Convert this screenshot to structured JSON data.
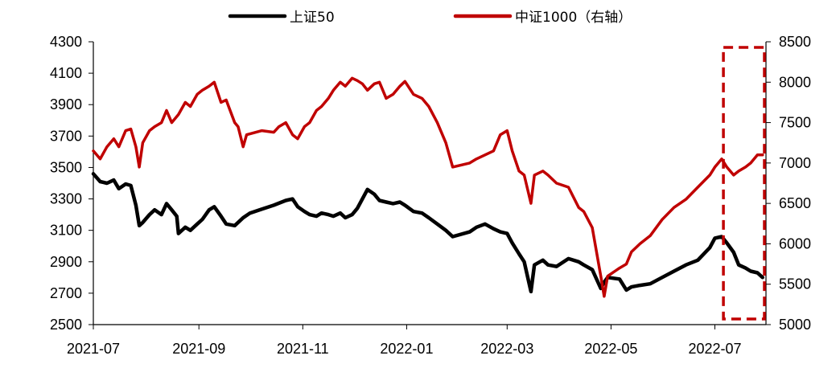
{
  "chart_data": {
    "type": "line",
    "title": "",
    "xlabel": "",
    "ylabel": "",
    "x_ticks": [
      "2021-07",
      "2021-09",
      "2021-11",
      "2022-01",
      "2022-03",
      "2022-05",
      "2022-07"
    ],
    "xlim": [
      "2021-07-01",
      "2022-07-31"
    ],
    "ylim_left": [
      2500,
      4300
    ],
    "yticks_left": [
      2500,
      2700,
      2900,
      3100,
      3300,
      3500,
      3700,
      3900,
      4100,
      4300
    ],
    "ylim_right": [
      5000,
      8500
    ],
    "yticks_right": [
      5000,
      5500,
      6000,
      6500,
      7000,
      7500,
      8000,
      8500
    ],
    "grid": false,
    "legend_position": "top-center",
    "highlight_box": {
      "x_range": [
        "2022-07-06",
        "2022-07-31"
      ],
      "style": "dashed",
      "color": "#c00000"
    },
    "series": [
      {
        "name": "上证50",
        "axis": "left",
        "color": "#000000",
        "points": [
          [
            "2021-07-01",
            3460
          ],
          [
            "2021-07-05",
            3410
          ],
          [
            "2021-07-09",
            3400
          ],
          [
            "2021-07-13",
            3420
          ],
          [
            "2021-07-16",
            3365
          ],
          [
            "2021-07-20",
            3395
          ],
          [
            "2021-07-23",
            3385
          ],
          [
            "2021-07-26",
            3260
          ],
          [
            "2021-07-28",
            3130
          ],
          [
            "2021-07-30",
            3150
          ],
          [
            "2021-08-03",
            3200
          ],
          [
            "2021-08-06",
            3230
          ],
          [
            "2021-08-10",
            3200
          ],
          [
            "2021-08-13",
            3270
          ],
          [
            "2021-08-16",
            3230
          ],
          [
            "2021-08-19",
            3190
          ],
          [
            "2021-08-20",
            3080
          ],
          [
            "2021-08-24",
            3120
          ],
          [
            "2021-08-27",
            3100
          ],
          [
            "2021-08-31",
            3140
          ],
          [
            "2021-09-03",
            3170
          ],
          [
            "2021-09-07",
            3230
          ],
          [
            "2021-09-10",
            3250
          ],
          [
            "2021-09-14",
            3190
          ],
          [
            "2021-09-17",
            3140
          ],
          [
            "2021-09-22",
            3130
          ],
          [
            "2021-09-27",
            3180
          ],
          [
            "2021-10-01",
            3210
          ],
          [
            "2021-10-08",
            3235
          ],
          [
            "2021-10-15",
            3260
          ],
          [
            "2021-10-22",
            3290
          ],
          [
            "2021-10-26",
            3300
          ],
          [
            "2021-10-29",
            3250
          ],
          [
            "2021-11-02",
            3220
          ],
          [
            "2021-11-05",
            3200
          ],
          [
            "2021-11-09",
            3190
          ],
          [
            "2021-11-12",
            3210
          ],
          [
            "2021-11-16",
            3200
          ],
          [
            "2021-11-19",
            3190
          ],
          [
            "2021-11-23",
            3210
          ],
          [
            "2021-11-26",
            3180
          ],
          [
            "2021-11-30",
            3200
          ],
          [
            "2021-12-03",
            3240
          ],
          [
            "2021-12-06",
            3300
          ],
          [
            "2021-12-09",
            3360
          ],
          [
            "2021-12-13",
            3330
          ],
          [
            "2021-12-16",
            3290
          ],
          [
            "2021-12-20",
            3280
          ],
          [
            "2021-12-24",
            3270
          ],
          [
            "2021-12-28",
            3280
          ],
          [
            "2021-12-31",
            3260
          ],
          [
            "2022-01-05",
            3220
          ],
          [
            "2022-01-10",
            3210
          ],
          [
            "2022-01-14",
            3180
          ],
          [
            "2022-01-19",
            3140
          ],
          [
            "2022-01-24",
            3100
          ],
          [
            "2022-01-28",
            3060
          ],
          [
            "2022-02-07",
            3090
          ],
          [
            "2022-02-11",
            3120
          ],
          [
            "2022-02-16",
            3140
          ],
          [
            "2022-02-21",
            3110
          ],
          [
            "2022-02-25",
            3090
          ],
          [
            "2022-03-01",
            3080
          ],
          [
            "2022-03-04",
            3020
          ],
          [
            "2022-03-08",
            2950
          ],
          [
            "2022-03-11",
            2900
          ],
          [
            "2022-03-15",
            2710
          ],
          [
            "2022-03-17",
            2880
          ],
          [
            "2022-03-22",
            2910
          ],
          [
            "2022-03-25",
            2880
          ],
          [
            "2022-03-30",
            2870
          ],
          [
            "2022-04-06",
            2920
          ],
          [
            "2022-04-12",
            2900
          ],
          [
            "2022-04-15",
            2880
          ],
          [
            "2022-04-20",
            2850
          ],
          [
            "2022-04-25",
            2730
          ],
          [
            "2022-04-27",
            2770
          ],
          [
            "2022-04-29",
            2800
          ],
          [
            "2022-05-06",
            2790
          ],
          [
            "2022-05-10",
            2720
          ],
          [
            "2022-05-13",
            2740
          ],
          [
            "2022-05-18",
            2750
          ],
          [
            "2022-05-24",
            2760
          ],
          [
            "2022-05-31",
            2800
          ],
          [
            "2022-06-07",
            2840
          ],
          [
            "2022-06-14",
            2880
          ],
          [
            "2022-06-21",
            2910
          ],
          [
            "2022-06-28",
            2990
          ],
          [
            "2022-07-01",
            3050
          ],
          [
            "2022-07-05",
            3060
          ],
          [
            "2022-07-08",
            3020
          ],
          [
            "2022-07-12",
            2960
          ],
          [
            "2022-07-15",
            2880
          ],
          [
            "2022-07-19",
            2860
          ],
          [
            "2022-07-22",
            2840
          ],
          [
            "2022-07-26",
            2830
          ],
          [
            "2022-07-29",
            2800
          ]
        ]
      },
      {
        "name": "中证1000（右轴）",
        "axis": "right",
        "color": "#c00000",
        "points": [
          [
            "2021-07-01",
            7150
          ],
          [
            "2021-07-05",
            7050
          ],
          [
            "2021-07-09",
            7200
          ],
          [
            "2021-07-13",
            7300
          ],
          [
            "2021-07-16",
            7200
          ],
          [
            "2021-07-20",
            7400
          ],
          [
            "2021-07-23",
            7420
          ],
          [
            "2021-07-26",
            7200
          ],
          [
            "2021-07-28",
            6950
          ],
          [
            "2021-07-30",
            7250
          ],
          [
            "2021-08-03",
            7400
          ],
          [
            "2021-08-06",
            7450
          ],
          [
            "2021-08-10",
            7500
          ],
          [
            "2021-08-13",
            7650
          ],
          [
            "2021-08-16",
            7500
          ],
          [
            "2021-08-20",
            7600
          ],
          [
            "2021-08-24",
            7750
          ],
          [
            "2021-08-27",
            7700
          ],
          [
            "2021-08-31",
            7850
          ],
          [
            "2021-09-03",
            7900
          ],
          [
            "2021-09-07",
            7950
          ],
          [
            "2021-09-10",
            8000
          ],
          [
            "2021-09-14",
            7750
          ],
          [
            "2021-09-17",
            7780
          ],
          [
            "2021-09-22",
            7500
          ],
          [
            "2021-09-24",
            7450
          ],
          [
            "2021-09-27",
            7200
          ],
          [
            "2021-09-29",
            7350
          ],
          [
            "2021-10-08",
            7400
          ],
          [
            "2021-10-15",
            7380
          ],
          [
            "2021-10-18",
            7450
          ],
          [
            "2021-10-22",
            7500
          ],
          [
            "2021-10-26",
            7350
          ],
          [
            "2021-10-29",
            7300
          ],
          [
            "2021-11-02",
            7450
          ],
          [
            "2021-11-05",
            7500
          ],
          [
            "2021-11-09",
            7650
          ],
          [
            "2021-11-12",
            7700
          ],
          [
            "2021-11-16",
            7800
          ],
          [
            "2021-11-19",
            7900
          ],
          [
            "2021-11-23",
            8000
          ],
          [
            "2021-11-26",
            7950
          ],
          [
            "2021-11-30",
            8050
          ],
          [
            "2021-12-03",
            8020
          ],
          [
            "2021-12-06",
            7980
          ],
          [
            "2021-12-09",
            7900
          ],
          [
            "2021-12-13",
            7980
          ],
          [
            "2021-12-16",
            8000
          ],
          [
            "2021-12-20",
            7800
          ],
          [
            "2021-12-24",
            7850
          ],
          [
            "2021-12-28",
            7950
          ],
          [
            "2021-12-31",
            8010
          ],
          [
            "2022-01-05",
            7850
          ],
          [
            "2022-01-10",
            7800
          ],
          [
            "2022-01-14",
            7700
          ],
          [
            "2022-01-19",
            7500
          ],
          [
            "2022-01-24",
            7250
          ],
          [
            "2022-01-28",
            6950
          ],
          [
            "2022-02-07",
            7000
          ],
          [
            "2022-02-11",
            7050
          ],
          [
            "2022-02-16",
            7100
          ],
          [
            "2022-02-21",
            7150
          ],
          [
            "2022-02-25",
            7350
          ],
          [
            "2022-03-01",
            7400
          ],
          [
            "2022-03-04",
            7150
          ],
          [
            "2022-03-08",
            6900
          ],
          [
            "2022-03-11",
            6850
          ],
          [
            "2022-03-15",
            6500
          ],
          [
            "2022-03-17",
            6850
          ],
          [
            "2022-03-22",
            6900
          ],
          [
            "2022-03-25",
            6850
          ],
          [
            "2022-03-30",
            6750
          ],
          [
            "2022-04-06",
            6700
          ],
          [
            "2022-04-12",
            6450
          ],
          [
            "2022-04-15",
            6400
          ],
          [
            "2022-04-20",
            6200
          ],
          [
            "2022-04-25",
            5600
          ],
          [
            "2022-04-27",
            5350
          ],
          [
            "2022-04-29",
            5600
          ],
          [
            "2022-05-06",
            5700
          ],
          [
            "2022-05-10",
            5750
          ],
          [
            "2022-05-13",
            5900
          ],
          [
            "2022-05-18",
            6000
          ],
          [
            "2022-05-24",
            6100
          ],
          [
            "2022-05-31",
            6300
          ],
          [
            "2022-06-07",
            6450
          ],
          [
            "2022-06-14",
            6550
          ],
          [
            "2022-06-21",
            6700
          ],
          [
            "2022-06-28",
            6850
          ],
          [
            "2022-07-01",
            6950
          ],
          [
            "2022-07-05",
            7050
          ],
          [
            "2022-07-08",
            6950
          ],
          [
            "2022-07-12",
            6850
          ],
          [
            "2022-07-15",
            6900
          ],
          [
            "2022-07-19",
            6950
          ],
          [
            "2022-07-22",
            7000
          ],
          [
            "2022-07-26",
            7100
          ],
          [
            "2022-07-29",
            7100
          ]
        ]
      }
    ]
  }
}
